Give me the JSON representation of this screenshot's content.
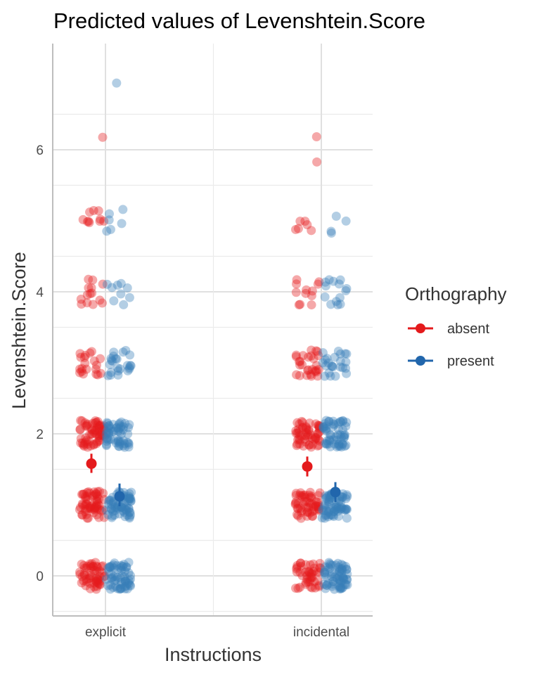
{
  "chart_data": {
    "type": "scatter",
    "title": "Predicted values of Levenshtein.Score",
    "xlabel": "Instructions",
    "ylabel": "Levenshtein.Score",
    "categories": [
      "explicit",
      "incidental"
    ],
    "ylim": [
      -0.55,
      7.5
    ],
    "yticks": [
      0,
      2,
      4,
      6
    ],
    "grid": true,
    "legend": {
      "title": "Orthography",
      "position": "right",
      "items": [
        {
          "label": "absent",
          "color": "#E41A1C"
        },
        {
          "label": "present",
          "color": "#377EB8"
        }
      ]
    },
    "jitter_counts": {
      "explicit": {
        "absent": {
          "0": 55,
          "1": 60,
          "2": 60,
          "3": 20,
          "4": 14,
          "5": 10,
          "6": 1
        },
        "present": {
          "0": 60,
          "1": 65,
          "2": 55,
          "3": 24,
          "4": 9,
          "5": 6,
          "6": 0,
          "7": 1
        }
      },
      "incidental": {
        "absent": {
          "0": 45,
          "1": 55,
          "2": 55,
          "3": 28,
          "4": 12,
          "5": 6,
          "6": 2
        },
        "present": {
          "0": 65,
          "1": 65,
          "2": 55,
          "3": 24,
          "4": 14,
          "5": 4,
          "6": 0
        }
      }
    },
    "predictions": [
      {
        "instruction": "explicit",
        "orthography": "absent",
        "value": 1.58,
        "ci": [
          1.45,
          1.72
        ]
      },
      {
        "instruction": "explicit",
        "orthography": "present",
        "value": 1.12,
        "ci": [
          0.98,
          1.3
        ]
      },
      {
        "instruction": "incidental",
        "orthography": "absent",
        "value": 1.54,
        "ci": [
          1.4,
          1.68
        ]
      },
      {
        "instruction": "incidental",
        "orthography": "present",
        "value": 1.18,
        "ci": [
          1.04,
          1.32
        ]
      }
    ]
  }
}
